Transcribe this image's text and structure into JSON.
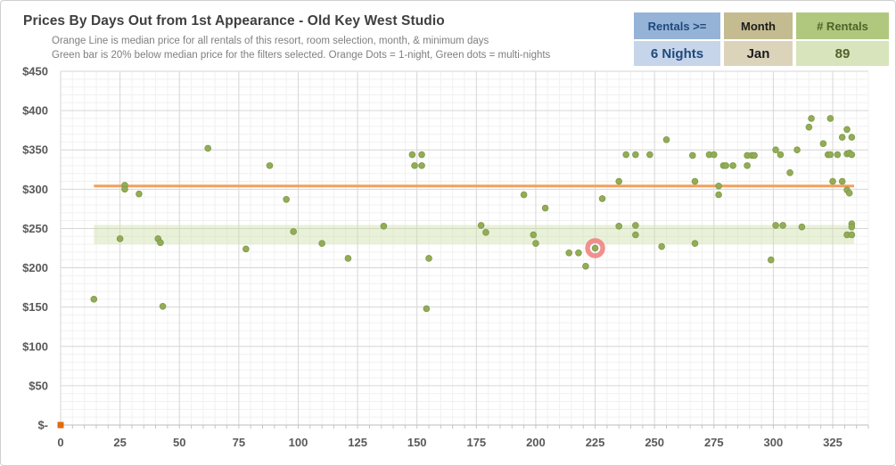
{
  "header": {
    "title": "Prices By Days Out from 1st Appearance - Old Key West Studio",
    "subtitle_line1": "Orange Line is median price for all rentals of this resort, room selection, month, & minimum days",
    "subtitle_line2": "Green bar is 20% below median price for the filters selected. Orange Dots = 1-night, Green dots = multi-nights"
  },
  "stat_boxes": [
    {
      "label": "Rentals >=",
      "value": "6 Nights",
      "header_bg": "#95B3D7",
      "value_bg": "#C7D5EA",
      "text_color": "#1F497D"
    },
    {
      "label": "Month",
      "value": "Jan",
      "header_bg": "#C4BB91",
      "value_bg": "#DBD4BA",
      "text_color": "#1C1C1C"
    },
    {
      "label": "# Rentals",
      "value": "89",
      "header_bg": "#AFC87E",
      "value_bg": "#D8E4BC",
      "text_color": "#4F6228"
    }
  ],
  "chart_data": {
    "type": "scatter",
    "title": "Prices By Days Out from 1st Appearance - Old Key West Studio",
    "xlabel": "",
    "ylabel": "",
    "xlim": [
      0,
      340
    ],
    "ylim": [
      0,
      450
    ],
    "x_ticks": [
      0,
      25,
      50,
      75,
      100,
      125,
      150,
      175,
      200,
      225,
      250,
      275,
      300,
      325
    ],
    "y_ticks": [
      {
        "value": 450,
        "label": "$450"
      },
      {
        "value": 400,
        "label": "$400"
      },
      {
        "value": 350,
        "label": "$350"
      },
      {
        "value": 300,
        "label": "$300"
      },
      {
        "value": 250,
        "label": "$250"
      },
      {
        "value": 200,
        "label": "$200"
      },
      {
        "value": 150,
        "label": "$150"
      },
      {
        "value": 100,
        "label": "$100"
      },
      {
        "value": 50,
        "label": "$50"
      },
      {
        "value": 0,
        "label": "$-"
      }
    ],
    "grid": {
      "x_minor_step": 5,
      "x_major_step": 25,
      "y_minor_step": 10,
      "y_major_step": 50
    },
    "legend_position": "none",
    "median_line": {
      "price": 304,
      "x_start": 14,
      "x_end": 334,
      "color": "#F2A05E",
      "meaning": "median price for all rentals of this resort, room selection, month, & minimum days"
    },
    "below_median_band": {
      "y_bottom": 230,
      "y_top": 254.5,
      "x_start": 14,
      "x_end": 334,
      "color": "#CBDDA4",
      "meaning": "20% below median price for the filters selected"
    },
    "highlight_ring": {
      "x": 225,
      "y": 225,
      "color": "#F07C7C"
    },
    "origin_marker": {
      "x": 0,
      "y": 0,
      "color": "#E26B0A",
      "meaning": "1-night (orange) series marker"
    },
    "series": [
      {
        "name": "multi-night rentals (green dots)",
        "color": "#93AC57",
        "edge_color": "#7E9A46",
        "points": [
          [
            14,
            160
          ],
          [
            25,
            237
          ],
          [
            27,
            305
          ],
          [
            27,
            300
          ],
          [
            33,
            294
          ],
          [
            41,
            237
          ],
          [
            42,
            232
          ],
          [
            43,
            151
          ],
          [
            62,
            352
          ],
          [
            78,
            224
          ],
          [
            88,
            330
          ],
          [
            95,
            287
          ],
          [
            98,
            246
          ],
          [
            110,
            231
          ],
          [
            121,
            212
          ],
          [
            136,
            253
          ],
          [
            148,
            344
          ],
          [
            149,
            330
          ],
          [
            152,
            344
          ],
          [
            152,
            330
          ],
          [
            154,
            148
          ],
          [
            155,
            212
          ],
          [
            177,
            254
          ],
          [
            179,
            245
          ],
          [
            195,
            293
          ],
          [
            199,
            242
          ],
          [
            200,
            231
          ],
          [
            204,
            276
          ],
          [
            214,
            219
          ],
          [
            218,
            219
          ],
          [
            221,
            202
          ],
          [
            225,
            225
          ],
          [
            228,
            288
          ],
          [
            235,
            310
          ],
          [
            235,
            253
          ],
          [
            238,
            344
          ],
          [
            242,
            344
          ],
          [
            242,
            254
          ],
          [
            242,
            242
          ],
          [
            248,
            344
          ],
          [
            253,
            227
          ],
          [
            255,
            363
          ],
          [
            266,
            343
          ],
          [
            267,
            310
          ],
          [
            267,
            231
          ],
          [
            273,
            344
          ],
          [
            275,
            344
          ],
          [
            277,
            304
          ],
          [
            277,
            293
          ],
          [
            279,
            330
          ],
          [
            280,
            330
          ],
          [
            283,
            330
          ],
          [
            289,
            343
          ],
          [
            289,
            330
          ],
          [
            291,
            343
          ],
          [
            292,
            343
          ],
          [
            299,
            210
          ],
          [
            301,
            350
          ],
          [
            301,
            254
          ],
          [
            303,
            344
          ],
          [
            304,
            254
          ],
          [
            307,
            321
          ],
          [
            310,
            350
          ],
          [
            312,
            252
          ],
          [
            315,
            379
          ],
          [
            316,
            390
          ],
          [
            321,
            358
          ],
          [
            323,
            344
          ],
          [
            324,
            344
          ],
          [
            324,
            390
          ],
          [
            327,
            344
          ],
          [
            325,
            310
          ],
          [
            329,
            310
          ],
          [
            329,
            366
          ],
          [
            331,
            376
          ],
          [
            331,
            345
          ],
          [
            331,
            299
          ],
          [
            331,
            242
          ],
          [
            332,
            346
          ],
          [
            332,
            295
          ],
          [
            333,
            366
          ],
          [
            333,
            344
          ],
          [
            333,
            256
          ],
          [
            333,
            252
          ],
          [
            333,
            242
          ]
        ]
      }
    ]
  }
}
